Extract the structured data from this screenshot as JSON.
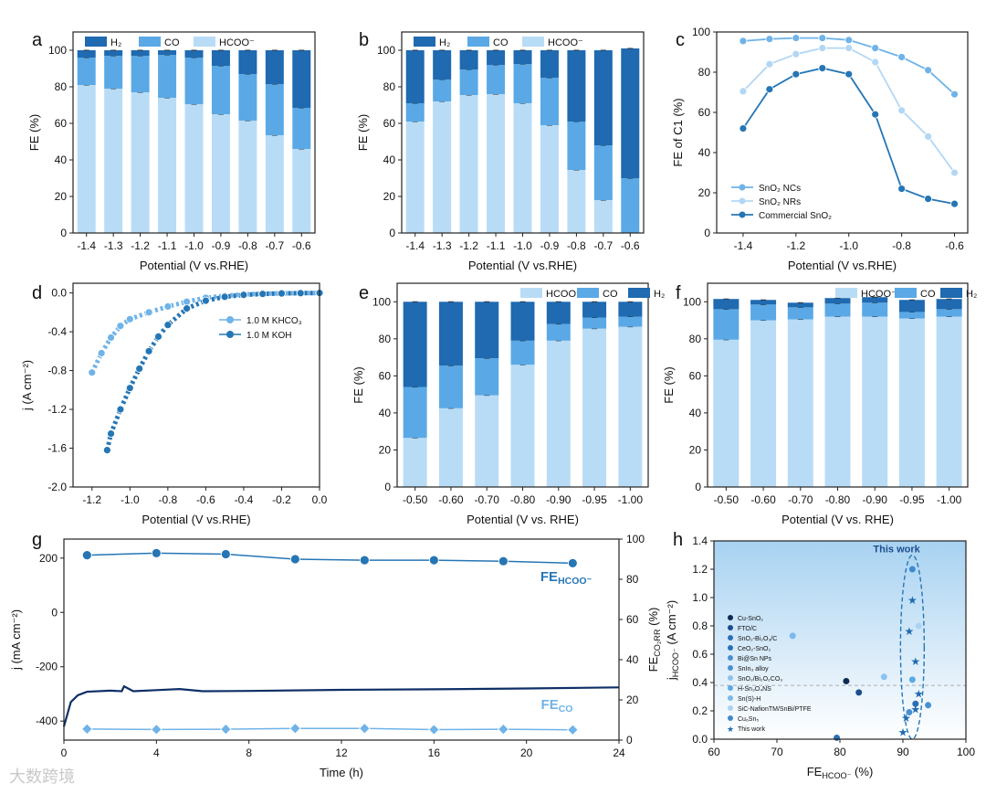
{
  "colors": {
    "h2": "#1f6ab0",
    "co": "#5aa9e6",
    "hcooh": "#b9dcf6",
    "line1": "#2576b5",
    "line2": "#6fb3e8",
    "line3": "#b2d7f4"
  },
  "watermark": "大数跨境",
  "chart_data": [
    {
      "id": "a",
      "type": "bar",
      "stacked": true,
      "categories": [
        "-1.4",
        "-1.3",
        "-1.2",
        "-1.1",
        "-1.0",
        "-0.9",
        "-0.8",
        "-0.7",
        "-0.6"
      ],
      "series": [
        {
          "name": "HCOO⁻",
          "values": [
            81,
            79,
            77,
            74,
            70.5,
            65,
            61.5,
            53.5,
            46
          ]
        },
        {
          "name": "CO",
          "values": [
            15,
            18,
            20,
            23.5,
            25.5,
            26.5,
            25.5,
            28,
            22.5
          ]
        },
        {
          "name": "H2",
          "values": [
            4,
            3,
            3,
            2.5,
            4,
            8.5,
            13,
            18.5,
            31.5
          ]
        }
      ],
      "legend": [
        "H₂",
        "CO",
        "HCOO⁻"
      ],
      "legend_position": "top",
      "xlabel": "Potential (V vs.RHE)",
      "ylabel": "FE (%)",
      "ylim": [
        0,
        110
      ],
      "yticks": [
        0,
        20,
        40,
        60,
        80,
        100
      ]
    },
    {
      "id": "b",
      "type": "bar",
      "stacked": true,
      "categories": [
        "-1.4",
        "-1.3",
        "-1.2",
        "-1.1",
        "-1.0",
        "-0.9",
        "-0.8",
        "-0.7",
        "-0.6"
      ],
      "series": [
        {
          "name": "HCOO⁻",
          "values": [
            61,
            72,
            75.5,
            76,
            71,
            59,
            34.5,
            18,
            0
          ]
        },
        {
          "name": "CO",
          "values": [
            10,
            12,
            14,
            16,
            21.5,
            26,
            26.5,
            30,
            30
          ]
        },
        {
          "name": "H2",
          "values": [
            29,
            16,
            10.5,
            8,
            7.5,
            15,
            39,
            52,
            71
          ]
        }
      ],
      "legend": [
        "H₂",
        "CO",
        "HCOO⁻"
      ],
      "legend_position": "top",
      "xlabel": "Potential (V vs.RHE)",
      "ylabel": "FE (%)",
      "ylim": [
        0,
        110
      ],
      "yticks": [
        0,
        20,
        40,
        60,
        80,
        100
      ]
    },
    {
      "id": "c",
      "type": "line",
      "x": [
        -1.4,
        -1.3,
        -1.2,
        -1.1,
        -1.0,
        -0.9,
        -0.8,
        -0.7,
        -0.6
      ],
      "series": [
        {
          "name": "SnO₂ NCs",
          "values": [
            95.5,
            96.5,
            97,
            97,
            96,
            92,
            87.5,
            81,
            69
          ]
        },
        {
          "name": "SnO₂ NRs",
          "values": [
            70.5,
            84,
            89,
            92,
            92,
            85,
            61,
            48,
            30
          ]
        },
        {
          "name": "Commercial SnO₂",
          "values": [
            52,
            71.5,
            79,
            82,
            79,
            59,
            22,
            17,
            14.5
          ]
        }
      ],
      "legend_position": "bottom-left",
      "xlabel": "Potential (V vs.RHE)",
      "ylabel": "FE of C1 (%)",
      "xlim": [
        -1.5,
        -0.55
      ],
      "ylim": [
        0,
        100
      ],
      "xticks": [
        "-1.4",
        "-1.2",
        "-1.0",
        "-0.8",
        "-0.6"
      ],
      "yticks": [
        0,
        20,
        40,
        60,
        80,
        100
      ]
    },
    {
      "id": "d",
      "type": "scatter",
      "series": [
        {
          "name": "1.0 M KHCO₃",
          "x": [
            -1.2,
            -1.15,
            -1.1,
            -1.05,
            -1.0,
            -0.9,
            -0.8,
            -0.7,
            -0.6,
            -0.5,
            -0.4,
            -0.3,
            -0.2,
            -0.1,
            0.0
          ],
          "values": [
            -0.82,
            -0.62,
            -0.46,
            -0.34,
            -0.27,
            -0.2,
            -0.14,
            -0.09,
            -0.05,
            -0.03,
            -0.015,
            -0.008,
            -0.004,
            -0.002,
            -0.001
          ]
        },
        {
          "name": "1.0 M KOH",
          "x": [
            -1.12,
            -1.1,
            -1.05,
            -1.0,
            -0.95,
            -0.9,
            -0.85,
            -0.8,
            -0.7,
            -0.6,
            -0.5,
            -0.4,
            -0.3,
            -0.2,
            -0.1,
            0.0
          ],
          "values": [
            -1.62,
            -1.45,
            -1.2,
            -0.98,
            -0.78,
            -0.6,
            -0.45,
            -0.33,
            -0.16,
            -0.08,
            -0.04,
            -0.02,
            -0.01,
            -0.005,
            -0.002,
            0.0
          ]
        }
      ],
      "legend_position": "top-right",
      "xlabel": "Potential (V vs.RHE)",
      "ylabel": "j (A cm⁻²)",
      "xlim": [
        -1.3,
        0.0
      ],
      "ylim": [
        -2.0,
        0.1
      ],
      "xticks": [
        "-1.2",
        "-1.0",
        "-0.8",
        "-0.6",
        "-0.4",
        "-0.2",
        "0.0"
      ],
      "yticks": [
        "0.0",
        "-0.4",
        "-0.8",
        "-1.2",
        "-1.6",
        "-2.0"
      ]
    },
    {
      "id": "e",
      "type": "bar",
      "stacked": true,
      "categories": [
        "-0.50",
        "-0.60",
        "-0.70",
        "-0.80",
        "-0.90",
        "-0.95",
        "-1.00"
      ],
      "series": [
        {
          "name": "HCOO⁻",
          "values": [
            26.5,
            42.5,
            49.5,
            66,
            79,
            85.5,
            86.5
          ]
        },
        {
          "name": "CO",
          "values": [
            27.5,
            23,
            20,
            13,
            9,
            6,
            5.5
          ]
        },
        {
          "name": "H2",
          "values": [
            46,
            34.5,
            30.5,
            21,
            12,
            8.5,
            8
          ]
        }
      ],
      "legend": [
        "HCOO⁻",
        "CO",
        "H₂"
      ],
      "legend_position": "top",
      "xlabel": "Potential (V vs. RHE)",
      "ylabel": "FE (%)",
      "ylim": [
        0,
        110
      ],
      "yticks": [
        0,
        20,
        40,
        60,
        80,
        100
      ]
    },
    {
      "id": "f",
      "type": "bar",
      "stacked": true,
      "categories": [
        "-0.50",
        "-0.60",
        "-0.70",
        "-0.80",
        "-0.90",
        "-0.95",
        "-1.00"
      ],
      "series": [
        {
          "name": "HCOO⁻",
          "values": [
            79.5,
            90,
            90.5,
            92,
            92,
            91,
            92
          ]
        },
        {
          "name": "CO",
          "values": [
            16.5,
            8.5,
            6.5,
            7,
            7.5,
            3.5,
            4
          ]
        },
        {
          "name": "H2",
          "values": [
            5.5,
            2.5,
            2.5,
            3,
            3,
            6.5,
            5.5
          ]
        }
      ],
      "legend": [
        "HCOO⁻",
        "CO",
        "H₂"
      ],
      "legend_position": "top",
      "xlabel": "Potential (V vs. RHE)",
      "ylabel": "FE (%)",
      "ylim": [
        0,
        110
      ],
      "yticks": [
        0,
        20,
        40,
        60,
        80,
        100
      ]
    },
    {
      "id": "g",
      "type": "line",
      "x": [
        1,
        4,
        7,
        10,
        13,
        16,
        19,
        22
      ],
      "series": [
        {
          "name": "FE HCOO⁻",
          "axis": "right",
          "values": [
            92,
            93,
            92.5,
            90,
            89.5,
            89.5,
            89,
            88
          ]
        },
        {
          "name": "FE CO",
          "axis": "right",
          "values": [
            5.5,
            5.3,
            5.4,
            5.8,
            5.8,
            5.2,
            5.4,
            5.1
          ]
        }
      ],
      "current_trace": {
        "x": [
          0,
          0.3,
          0.6,
          1,
          2,
          2.5,
          2.6,
          3,
          4,
          5,
          6,
          8,
          12,
          16,
          20,
          24
        ],
        "values": [
          -420,
          -330,
          -305,
          -292,
          -288,
          -290,
          -272,
          -290,
          -286,
          -282,
          -290,
          -289,
          -285,
          -283,
          -280,
          -276
        ]
      },
      "labels": {
        "hcoo": "FE",
        "hcoo_sub": "HCOO⁻",
        "co": "FE",
        "co_sub": "CO"
      },
      "xlabel": "Time (h)",
      "ylabel": "j (mA cm⁻²)",
      "y2label": "FE(CO₂RR) (%)",
      "y2label_main": "FE",
      "y2label_sub": "CO₂RR",
      "y2label_tail": "(%)",
      "xlim": [
        0,
        24
      ],
      "ylim": [
        -470,
        270
      ],
      "y2lim": [
        0,
        100
      ],
      "xticks": [
        0,
        4,
        8,
        12,
        16,
        20,
        24
      ],
      "yticks": [
        -400,
        -200,
        0,
        200
      ],
      "y2ticks": [
        0,
        20,
        40,
        60,
        80,
        100
      ]
    },
    {
      "id": "h",
      "type": "scatter",
      "points": [
        {
          "name": "Cu-SnO₂",
          "x": 81,
          "y": 0.41
        },
        {
          "name": "FTO/C",
          "x": 83,
          "y": 0.33
        },
        {
          "name": "SnO₂-Bi₂O₃/C",
          "x": 92,
          "y": 0.25
        },
        {
          "name": "CeO₂-SnO₂",
          "x": 79.5,
          "y": 0.01
        },
        {
          "name": "Bi@Sn NPs",
          "x": 91,
          "y": 0.19
        },
        {
          "name": "SnIn₃ alloy",
          "x": 94,
          "y": 0.24
        },
        {
          "name": "SnO₂/Bi₂O₂CO₃",
          "x": 87,
          "y": 0.44
        },
        {
          "name": "H-Sn₃O₄NS",
          "x": 91.5,
          "y": 0.42
        },
        {
          "name": "Sn(S)-H",
          "x": 72.5,
          "y": 0.73
        },
        {
          "name": "SiC-NafionTM/SnBi/PTFE",
          "x": 92.5,
          "y": 0.8
        },
        {
          "name": "Cu₆Sn₅",
          "x": 91.5,
          "y": 1.2
        },
        {
          "name": "This work",
          "x": [
            90,
            90.5,
            91,
            91.5,
            92,
            92,
            92.5
          ],
          "y": [
            0.05,
            0.15,
            0.76,
            0.98,
            0.55,
            0.21,
            0.32
          ]
        }
      ],
      "annotation": "This work",
      "xlabel": "FE(HCOO⁻) (%)",
      "ylabel": "j(HCOO⁻) (A cm⁻²)",
      "xlabel_main": "FE",
      "xlabel_sub": "HCOO⁻",
      "xlabel_tail": "(%)",
      "ylabel_main": "j",
      "ylabel_sub": "HCOO⁻",
      "ylabel_tail": "(A cm⁻²)",
      "xlim": [
        60,
        100
      ],
      "ylim": [
        0,
        1.4
      ],
      "xticks": [
        60,
        70,
        80,
        90,
        100
      ],
      "yticks": [
        "0.0",
        "0.2",
        "0.4",
        "0.6",
        "0.8",
        "1.0",
        "1.2",
        "1.4"
      ],
      "reference_line": 0.38
    }
  ],
  "panel_labels": [
    "a",
    "b",
    "c",
    "d",
    "e",
    "f",
    "g",
    "h"
  ]
}
